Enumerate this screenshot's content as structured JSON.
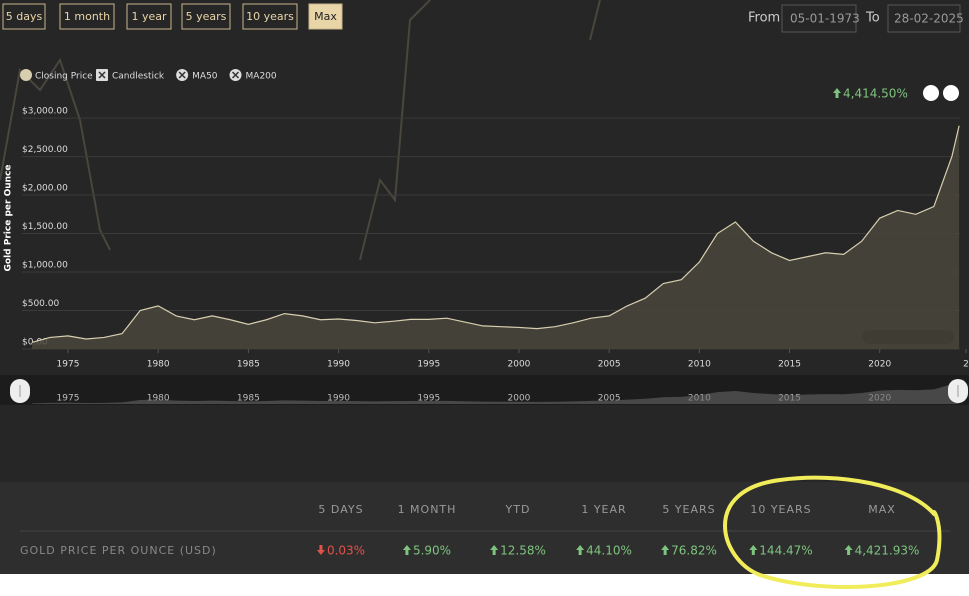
{
  "controls": {
    "ranges": [
      "5 days",
      "1 month",
      "1 year",
      "5 years",
      "10 years",
      "Max"
    ],
    "active": "Max",
    "from_label": "From",
    "from_value": "05-01-1973",
    "to_label": "To",
    "to_value": "28-02-2025"
  },
  "chart_data": {
    "type": "area",
    "y_label": "Gold Price per Ounce",
    "change": {
      "text": "4,414.50%",
      "trend": "up"
    },
    "toggles": [
      "Candlestick",
      "MA50",
      "MA200"
    ],
    "x": [
      1973,
      1974,
      1975,
      1976,
      1977,
      1978,
      1979,
      1980,
      1981,
      1982,
      1983,
      1984,
      1985,
      1986,
      1987,
      1988,
      1989,
      1990,
      1991,
      1992,
      1993,
      1994,
      1995,
      1996,
      1997,
      1998,
      1999,
      2000,
      2001,
      2002,
      2003,
      2004,
      2005,
      2006,
      2007,
      2008,
      2009,
      2010,
      2011,
      2012,
      2013,
      2014,
      2015,
      2016,
      2017,
      2018,
      2019,
      2020,
      2021,
      2022,
      2023,
      2024,
      2024.4
    ],
    "series": [
      {
        "name": "Closing Price",
        "color": "#d8cfb0",
        "values": [
          85,
          150,
          170,
          130,
          150,
          200,
          500,
          560,
          430,
          380,
          430,
          380,
          320,
          380,
          460,
          430,
          380,
          390,
          370,
          340,
          360,
          385,
          385,
          400,
          350,
          300,
          290,
          280,
          265,
          290,
          340,
          400,
          430,
          560,
          660,
          850,
          900,
          1130,
          1500,
          1650,
          1400,
          1250,
          1150,
          1200,
          1250,
          1230,
          1400,
          1700,
          1800,
          1750,
          1850,
          2500,
          2900
        ]
      }
    ],
    "xlim": [
      1972.45,
      2024.45
    ],
    "xticks": [
      1975,
      1980,
      1985,
      1990,
      1995,
      2000,
      2005,
      2010,
      2015,
      2020,
      {
        "value": 2025,
        "label": "2"
      }
    ],
    "ylim": [
      0,
      3300
    ],
    "yticks": [
      {
        "value": 0,
        "label": "$0.00"
      },
      {
        "value": 500,
        "label": "$500.00"
      },
      {
        "value": 1000,
        "label": "$1,000.00"
      },
      {
        "value": 1500,
        "label": "$1,500.00"
      },
      {
        "value": 2000,
        "label": "$2,000.00"
      },
      {
        "value": 2500,
        "label": "$2,500.00"
      },
      {
        "value": 3000,
        "label": "$3,000.00"
      }
    ],
    "grid": true
  },
  "performance": {
    "headers": [
      "5 DAYS",
      "1 MONTH",
      "YTD",
      "1 YEAR",
      "5 YEARS",
      "10 YEARS",
      "MAX"
    ],
    "rows": [
      {
        "label": "GOLD PRICE PER OUNCE (USD)",
        "cells": [
          {
            "text": "0.03%",
            "trend": "down"
          },
          {
            "text": "5.90%",
            "trend": "up"
          },
          {
            "text": "12.58%",
            "trend": "up"
          },
          {
            "text": "44.10%",
            "trend": "up"
          },
          {
            "text": "76.82%",
            "trend": "up"
          },
          {
            "text": "144.47%",
            "trend": "up"
          },
          {
            "text": "4,421.93%",
            "trend": "up"
          }
        ]
      }
    ]
  }
}
